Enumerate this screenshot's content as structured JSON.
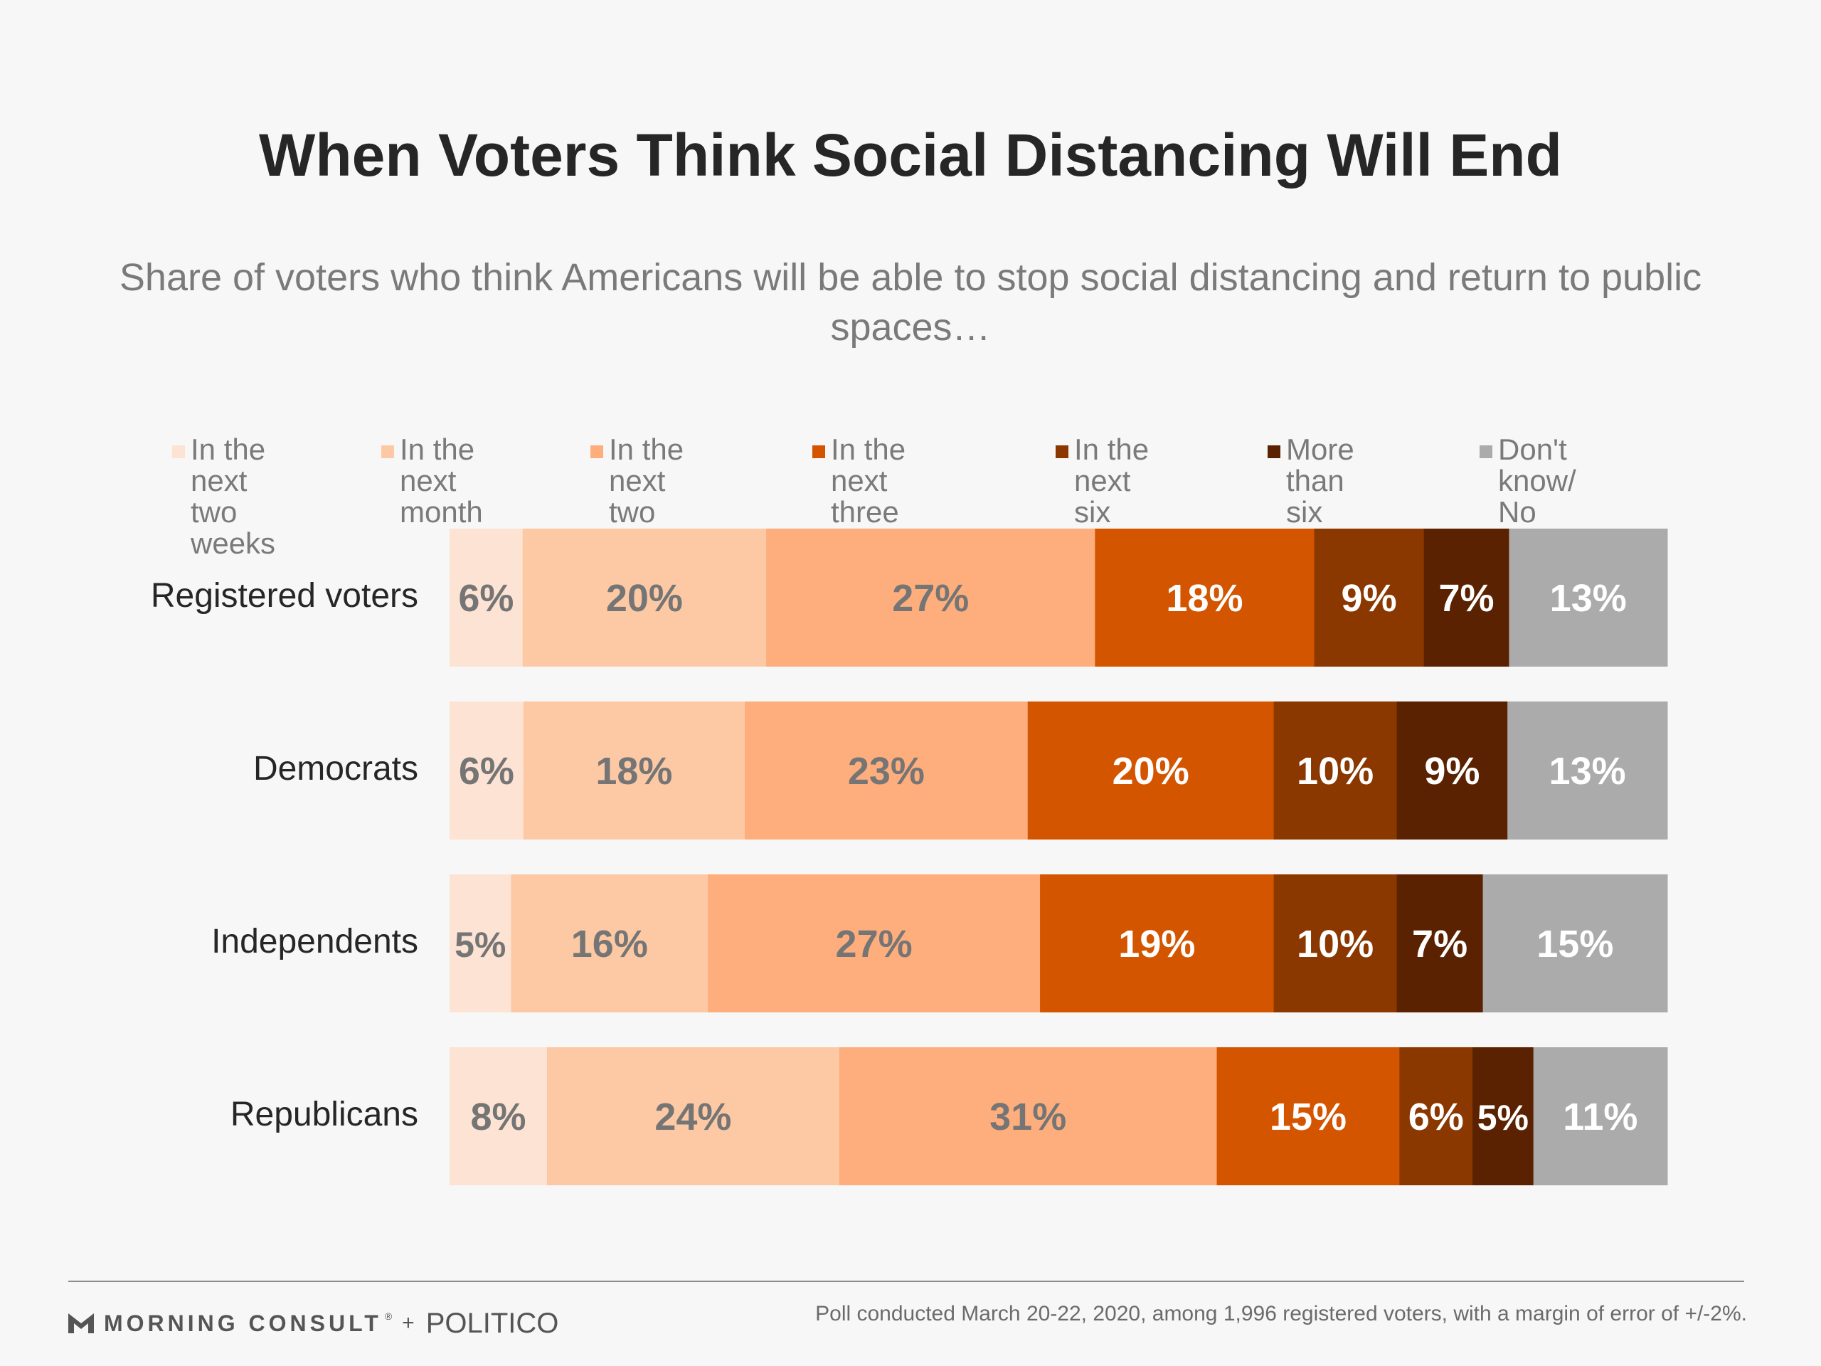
{
  "title": "When Voters Think Social Distancing Will End",
  "subtitle": "Share of voters who think Americans will be able to stop social distancing and return to public spaces…",
  "footnote": "Poll conducted March 20-22, 2020, among 1,996 registered voters, with a margin of error of +/-2%.",
  "brand": {
    "morning_consult": "MORNING CONSULT",
    "registered_mark": "®",
    "plus": "+",
    "politico": "POLITICO"
  },
  "colors": {
    "background": "#f7f7f7",
    "title": "#262626",
    "label_dark": "#757575",
    "label_light": "#ffffff"
  },
  "chart_data": {
    "type": "bar",
    "orientation": "horizontal",
    "stacked": true,
    "normalized": "percent",
    "legend_position": "top",
    "categories": [
      "Registered voters",
      "Democrats",
      "Independents",
      "Republicans"
    ],
    "series": [
      {
        "name": "In the next\ntwo weeks",
        "color": "#fde3d3",
        "label_color": "#757575",
        "values": [
          6,
          6,
          5,
          8
        ]
      },
      {
        "name": "In the next\nmonth",
        "color": "#fdc9a4",
        "label_color": "#757575",
        "values": [
          20,
          18,
          16,
          24
        ]
      },
      {
        "name": "In the next\ntwo months",
        "color": "#fdae7c",
        "label_color": "#757575",
        "values": [
          27,
          23,
          27,
          31
        ]
      },
      {
        "name": "In the next\nthree months",
        "color": "#d45500",
        "label_color": "#ffffff",
        "values": [
          18,
          20,
          19,
          15
        ]
      },
      {
        "name": "In the next\nsix months",
        "color": "#8b3800",
        "label_color": "#ffffff",
        "values": [
          9,
          10,
          10,
          6
        ]
      },
      {
        "name": "More than\nsix months",
        "color": "#5a2200",
        "label_color": "#ffffff",
        "values": [
          7,
          9,
          7,
          5
        ]
      },
      {
        "name": "Don't know/\nNo opinion",
        "color": "#ababab",
        "label_color": "#ffffff",
        "values": [
          13,
          13,
          15,
          11
        ]
      }
    ],
    "value_suffix": "%"
  }
}
